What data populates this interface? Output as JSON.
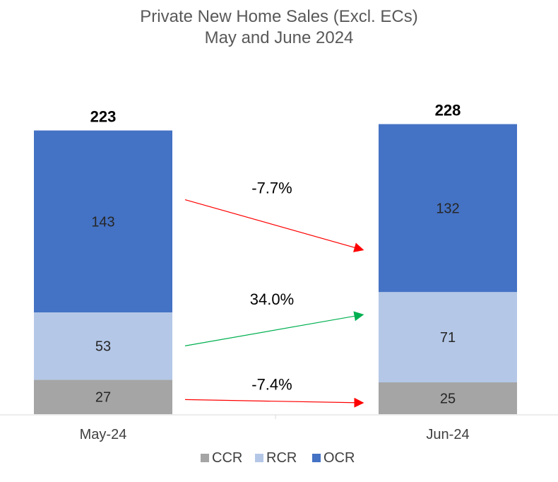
{
  "chart_data": {
    "type": "bar",
    "stacked": true,
    "title": "Private New Home Sales (Excl. ECs)",
    "subtitle": "May and June 2024",
    "categories": [
      "May-24",
      "Jun-24"
    ],
    "series": [
      {
        "name": "CCR",
        "values": [
          27,
          25
        ],
        "color": "#a5a5a5"
      },
      {
        "name": "RCR",
        "values": [
          53,
          71
        ],
        "color": "#b4c7e7"
      },
      {
        "name": "OCR",
        "values": [
          143,
          132
        ],
        "color": "#4472c4"
      }
    ],
    "totals": [
      "223",
      "228"
    ],
    "segment_labels": [
      [
        "27",
        "25"
      ],
      [
        "53",
        "71"
      ],
      [
        "143",
        "132"
      ]
    ],
    "changes": [
      {
        "series": "OCR",
        "label": "-7.7%",
        "color": "#ff0000"
      },
      {
        "series": "RCR",
        "label": "34.0%",
        "color": "#00b050"
      },
      {
        "series": "CCR",
        "label": "-7.4%",
        "color": "#ff0000"
      }
    ],
    "legend": {
      "position": "bottom",
      "entries": [
        "CCR",
        "RCR",
        "OCR"
      ]
    },
    "grid": false,
    "ylim": [
      0,
      250
    ]
  }
}
